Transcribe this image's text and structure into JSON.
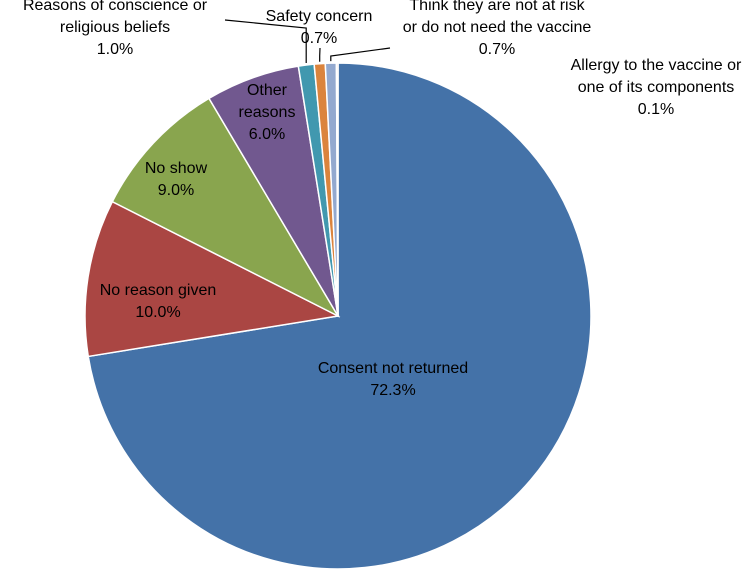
{
  "chart_data": {
    "type": "pie",
    "title": "",
    "slices": [
      {
        "label_lines": [
          "Consent not returned"
        ],
        "pct_text": "72.3%",
        "value": 72.3,
        "color": "#4472A8"
      },
      {
        "label_lines": [
          "No reason given"
        ],
        "pct_text": "10.0%",
        "value": 10.0,
        "color": "#AA4643"
      },
      {
        "label_lines": [
          "No show"
        ],
        "pct_text": "9.0%",
        "value": 9.0,
        "color": "#89A54E"
      },
      {
        "label_lines": [
          "Other",
          "reasons"
        ],
        "pct_text": "6.0%",
        "value": 6.0,
        "color": "#71588F"
      },
      {
        "label_lines": [
          "Reasons of conscience or",
          "religious beliefs"
        ],
        "pct_text": "1.0%",
        "value": 1.0,
        "color": "#4198AF"
      },
      {
        "label_lines": [
          "Safety concern"
        ],
        "pct_text": "0.7%",
        "value": 0.7,
        "color": "#DB843D"
      },
      {
        "label_lines": [
          "Think they are not at risk",
          "or do not need the vaccine"
        ],
        "pct_text": "0.7%",
        "value": 0.7,
        "color": "#93A9CF"
      },
      {
        "label_lines": [
          "Allergy to the vaccine or",
          "one of its components"
        ],
        "pct_text": "0.1%",
        "value": 0.1,
        "color": "#D19392"
      }
    ]
  }
}
